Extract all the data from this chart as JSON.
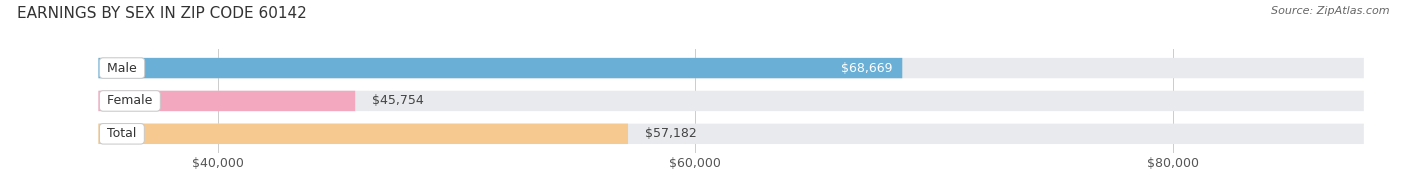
{
  "title": "EARNINGS BY SEX IN ZIP CODE 60142",
  "source": "Source: ZipAtlas.com",
  "categories": [
    "Male",
    "Female",
    "Total"
  ],
  "values": [
    68669,
    45754,
    57182
  ],
  "bar_colors": [
    "#6aafd6",
    "#f4a8c0",
    "#f5c990"
  ],
  "value_labels": [
    "$68,669",
    "$45,754",
    "$57,182"
  ],
  "value_label_inside": [
    true,
    false,
    false
  ],
  "value_label_colors": [
    "#ffffff",
    "#555555",
    "#555555"
  ],
  "xlim_min": 35000,
  "xlim_max": 88000,
  "xticks": [
    40000,
    60000,
    80000
  ],
  "xtick_labels": [
    "$40,000",
    "$60,000",
    "$80,000"
  ],
  "bar_height": 0.62,
  "background_color": "#ffffff",
  "bar_bg_color": "#e8eaed",
  "title_fontsize": 11,
  "label_fontsize": 9,
  "value_fontsize": 9,
  "axis_fontsize": 9
}
